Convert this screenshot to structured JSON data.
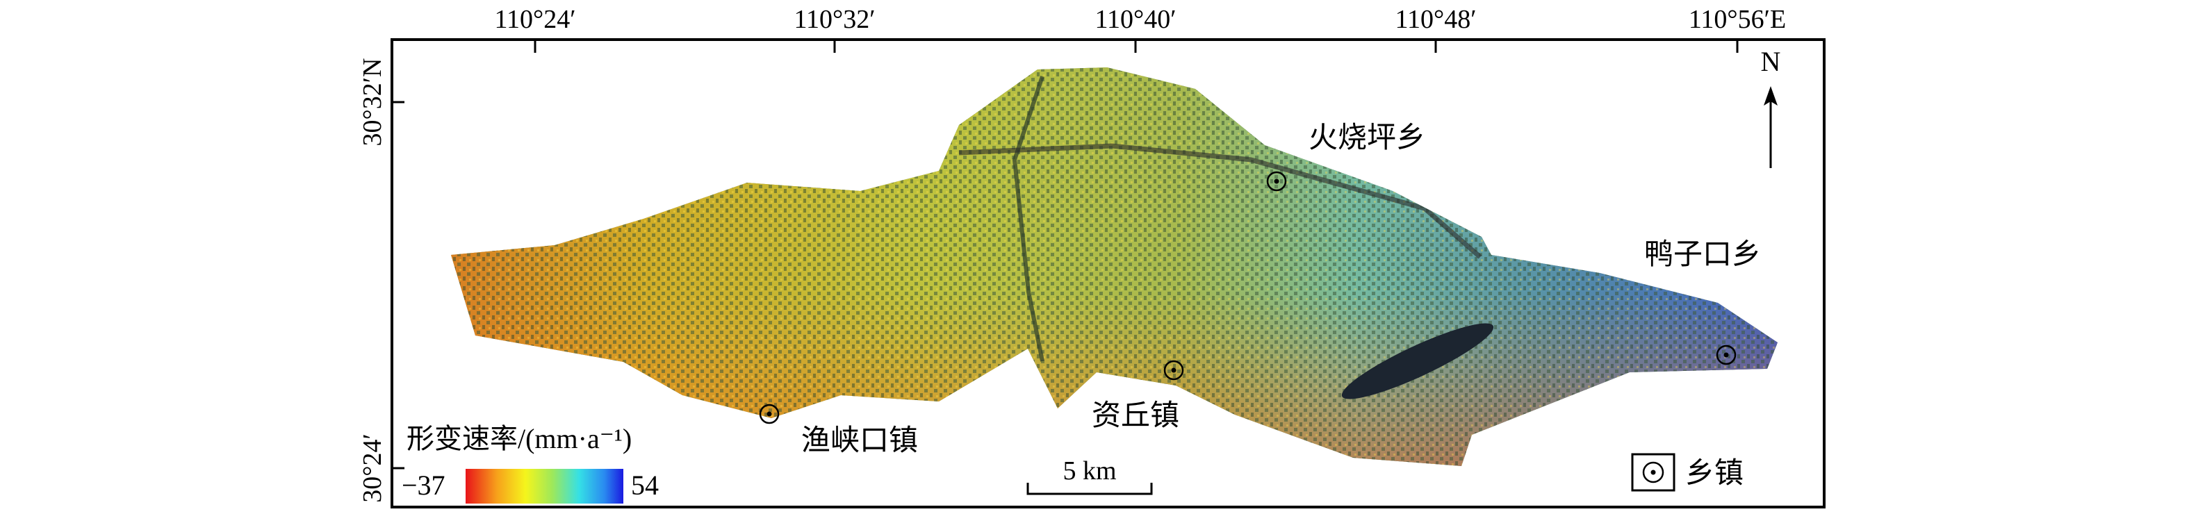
{
  "map": {
    "longitude_ticks": [
      "110°24′",
      "110°32′",
      "110°40′",
      "110°48′",
      "110°56′E"
    ],
    "latitude_ticks": [
      "30°32′N",
      "30°24′"
    ],
    "north_label": "N",
    "places": [
      {
        "name": "火烧坪乡"
      },
      {
        "name": "鸭子口乡"
      },
      {
        "name": "渔峡口镇"
      },
      {
        "name": "资丘镇"
      }
    ],
    "legend": {
      "title": "形变速率/(mm·a⁻¹)",
      "min": "−37",
      "max": "54",
      "colors": [
        "#e8141a",
        "#f7a21b",
        "#f5f51c",
        "#9ee85a",
        "#35e0e6",
        "#2a55f0",
        "#1a1ae0"
      ],
      "symbol_label": "乡镇"
    },
    "scale_bar": "5 km"
  }
}
